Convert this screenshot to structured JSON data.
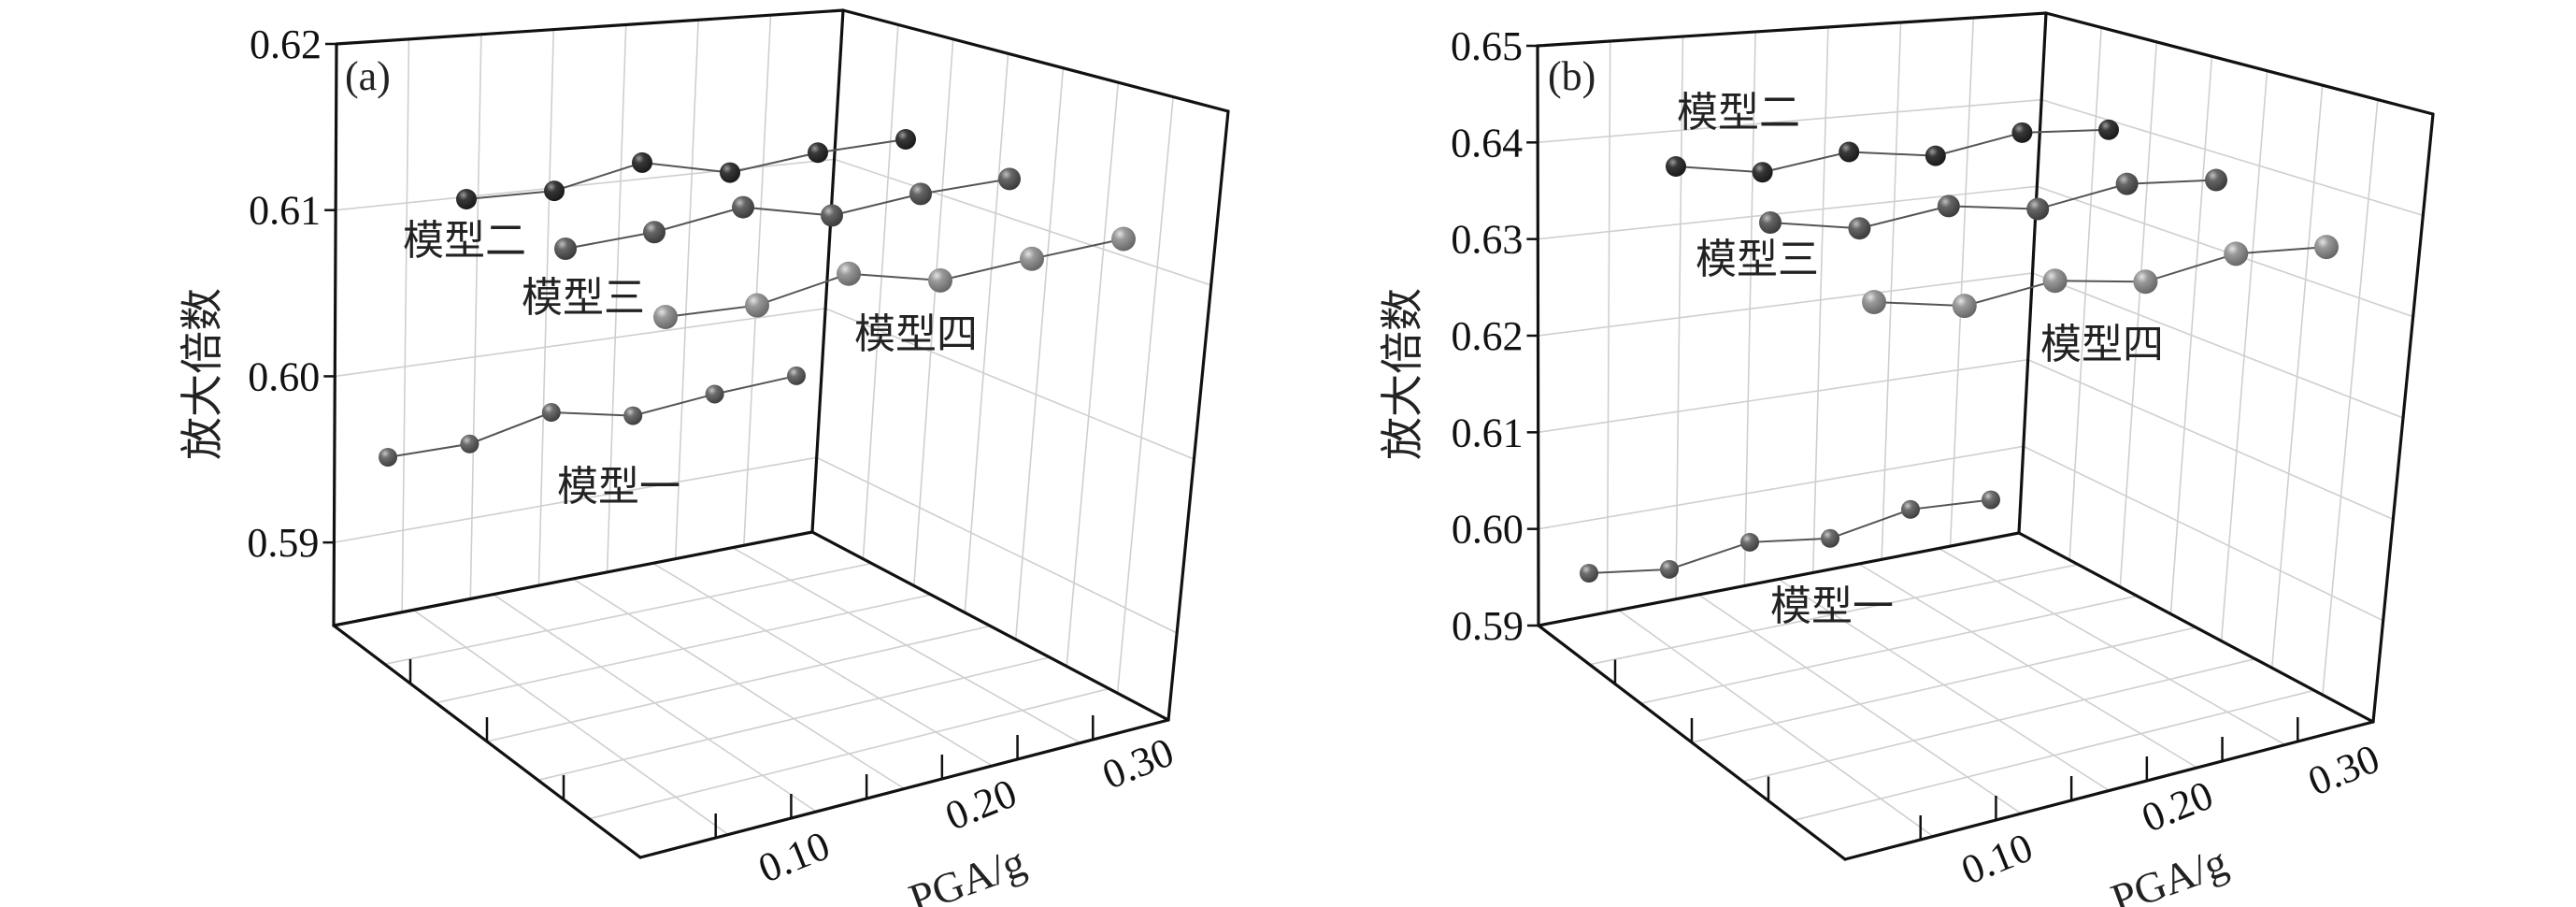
{
  "chart_data": [
    {
      "type": "scatter",
      "panel_label": "(a)",
      "xlabel": "PGA/g",
      "ylabel": "放大倍数",
      "x": [
        0.05,
        0.1,
        0.15,
        0.2,
        0.25,
        0.3
      ],
      "x_tick_labels": [
        "0.10",
        "0.20",
        "0.30"
      ],
      "y_tick_labels": [
        "0.62",
        "0.61",
        "0.60",
        "0.59"
      ],
      "y_ticks": [
        0.62,
        0.61,
        0.6,
        0.59
      ],
      "ylim": [
        0.585,
        0.62
      ],
      "grid": true,
      "series": [
        {
          "name": "模型一",
          "color": "#6e6e6e",
          "values": [
            0.5955,
            0.5963,
            0.5982,
            0.598,
            0.5993,
            0.6004
          ]
        },
        {
          "name": "模型二",
          "color": "#383838",
          "values": [
            0.611,
            0.6115,
            0.6132,
            0.6126,
            0.6138,
            0.6146
          ]
        },
        {
          "name": "模型三",
          "color": "#666666",
          "values": [
            0.608,
            0.609,
            0.6105,
            0.61,
            0.6113,
            0.6122
          ]
        },
        {
          "name": "模型四",
          "color": "#9a9a9a",
          "values": [
            0.604,
            0.6047,
            0.6066,
            0.6062,
            0.6075,
            0.6087
          ]
        }
      ]
    },
    {
      "type": "scatter",
      "panel_label": "(b)",
      "xlabel": "PGA/g",
      "ylabel": "放大倍数",
      "x": [
        0.05,
        0.1,
        0.15,
        0.2,
        0.25,
        0.3
      ],
      "x_tick_labels": [
        "0.10",
        "0.20",
        "0.30"
      ],
      "y_tick_labels": [
        "0.65",
        "0.64",
        "0.63",
        "0.62",
        "0.61",
        "0.60",
        "0.59"
      ],
      "y_ticks": [
        0.65,
        0.64,
        0.63,
        0.62,
        0.61,
        0.6,
        0.59
      ],
      "ylim": [
        0.59,
        0.65
      ],
      "grid": true,
      "series": [
        {
          "name": "模型一",
          "color": "#6e6e6e",
          "values": [
            0.5956,
            0.596,
            0.5988,
            0.5992,
            0.6022,
            0.6032
          ]
        },
        {
          "name": "模型二",
          "color": "#383838",
          "values": [
            0.6383,
            0.6377,
            0.6398,
            0.6394,
            0.6418,
            0.6421
          ]
        },
        {
          "name": "模型三",
          "color": "#666666",
          "values": [
            0.6328,
            0.6322,
            0.6345,
            0.6342,
            0.6368,
            0.6372
          ]
        },
        {
          "name": "模型四",
          "color": "#9a9a9a",
          "values": [
            0.6248,
            0.6244,
            0.627,
            0.6269,
            0.6298,
            0.6305
          ]
        }
      ]
    }
  ]
}
